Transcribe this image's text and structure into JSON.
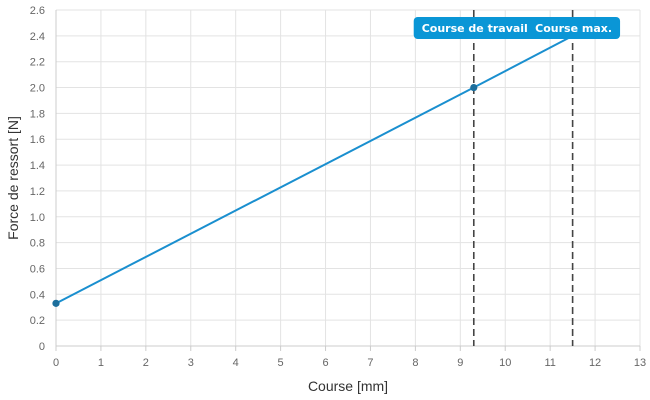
{
  "colors": {
    "line": "#1a8fcf",
    "point": "#1c6e9c",
    "label_bg": "#0a96d6",
    "marker_line": "#444444",
    "grid": "#e3e3e3",
    "axis": "#cccccc"
  },
  "chart_data": {
    "type": "line",
    "title": "",
    "xlabel": "Course [mm]",
    "ylabel": "Force de ressort [N]",
    "xlim": [
      0,
      13
    ],
    "ylim": [
      0,
      2.6
    ],
    "x_ticks": [
      0,
      1,
      2,
      3,
      4,
      5,
      6,
      7,
      8,
      9,
      10,
      11,
      12,
      13
    ],
    "y_ticks": [
      0,
      0.2,
      0.4,
      0.6,
      0.8,
      1.0,
      1.2,
      1.4,
      1.6,
      1.8,
      2.0,
      2.2,
      2.4,
      2.6
    ],
    "y_tick_labels": [
      "0",
      "0.2",
      "0.4",
      "0.6",
      "0.8",
      "1.0",
      "1.2",
      "1.4",
      "1.6",
      "1.8",
      "2.0",
      "2.2",
      "2.4",
      "2.6"
    ],
    "grid": true,
    "series": [
      {
        "x": [
          0,
          9.3,
          11.5
        ],
        "y": [
          0.33,
          2.0,
          2.4
        ]
      }
    ],
    "points": [
      {
        "x": 0,
        "y": 0.33
      },
      {
        "x": 9.3,
        "y": 2.0
      }
    ],
    "markers": [
      {
        "x": 9.3,
        "label": "Course de travail"
      },
      {
        "x": 11.5,
        "label": "Course max."
      }
    ]
  }
}
